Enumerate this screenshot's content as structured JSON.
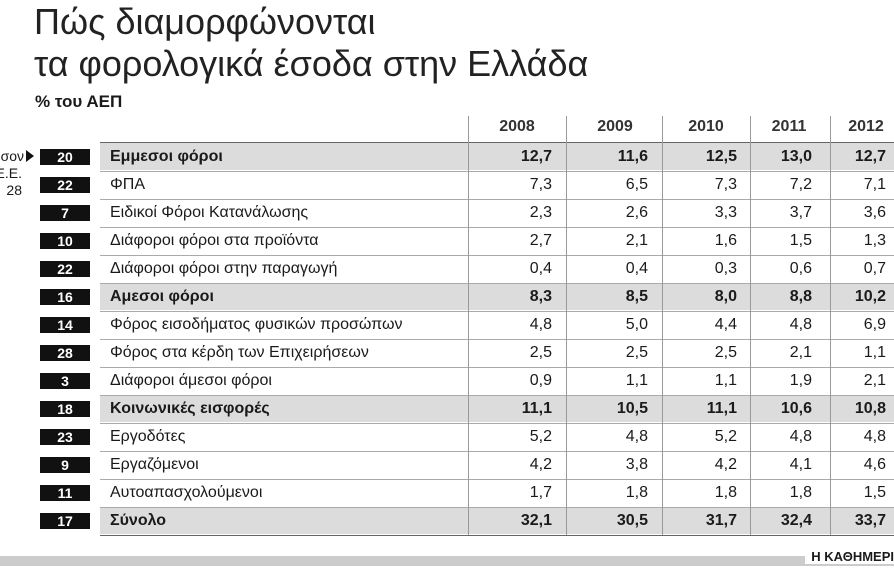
{
  "header": {
    "title_lines": [
      "Πώς διαμορφώνονται",
      "τα φορολογικά έσοδα στην Ελλάδα"
    ],
    "subtitle": "% του ΑΕΠ"
  },
  "side_note": [
    "σον",
    "Ε.Ε.",
    "28"
  ],
  "table": {
    "columns": [
      "2008",
      "2009",
      "2010",
      "2011",
      "2012"
    ],
    "rows": [
      {
        "rank": "20",
        "label": "Εμμεσοι φόροι",
        "values": [
          "12,7",
          "11,6",
          "12,5",
          "13,0",
          "12,7"
        ],
        "emphasis": true
      },
      {
        "rank": "22",
        "label": "ΦΠΑ",
        "values": [
          "7,3",
          "6,5",
          "7,3",
          "7,2",
          "7,1"
        ],
        "emphasis": false
      },
      {
        "rank": "7",
        "label": "Ειδικοί Φόροι Κατανάλωσης",
        "values": [
          "2,3",
          "2,6",
          "3,3",
          "3,7",
          "3,6"
        ],
        "emphasis": false
      },
      {
        "rank": "10",
        "label": "Διάφοροι φόροι στα προϊόντα",
        "values": [
          "2,7",
          "2,1",
          "1,6",
          "1,5",
          "1,3"
        ],
        "emphasis": false
      },
      {
        "rank": "22",
        "label": "Διάφοροι φόροι στην παραγωγή",
        "values": [
          "0,4",
          "0,4",
          "0,3",
          "0,6",
          "0,7"
        ],
        "emphasis": false
      },
      {
        "rank": "16",
        "label": "Αμεσοι φόροι",
        "values": [
          "8,3",
          "8,5",
          "8,0",
          "8,8",
          "10,2"
        ],
        "emphasis": true
      },
      {
        "rank": "14",
        "label": "Φόρος εισοδήματος φυσικών προσώπων",
        "values": [
          "4,8",
          "5,0",
          "4,4",
          "4,8",
          "6,9"
        ],
        "emphasis": false
      },
      {
        "rank": "28",
        "label": "Φόρος στα κέρδη των Επιχειρήσεων",
        "values": [
          "2,5",
          "2,5",
          "2,5",
          "2,1",
          "1,1"
        ],
        "emphasis": false
      },
      {
        "rank": "3",
        "label": "Διάφοροι άμεσοι φόροι",
        "values": [
          "0,9",
          "1,1",
          "1,1",
          "1,9",
          "2,1"
        ],
        "emphasis": false
      },
      {
        "rank": "18",
        "label": "Κοινωνικές εισφορές",
        "values": [
          "11,1",
          "10,5",
          "11,1",
          "10,6",
          "10,8"
        ],
        "emphasis": true
      },
      {
        "rank": "23",
        "label": "Εργοδότες",
        "values": [
          "5,2",
          "4,8",
          "5,2",
          "4,8",
          "4,8"
        ],
        "emphasis": false
      },
      {
        "rank": "9",
        "label": "Εργαζόμενοι",
        "values": [
          "4,2",
          "3,8",
          "4,2",
          "4,1",
          "4,6"
        ],
        "emphasis": false
      },
      {
        "rank": "11",
        "label": "Αυτοαπασχολούμενοι",
        "values": [
          "1,7",
          "1,8",
          "1,8",
          "1,8",
          "1,5"
        ],
        "emphasis": false
      },
      {
        "rank": "17",
        "label": "Σύνολο",
        "values": [
          "32,1",
          "30,5",
          "31,7",
          "32,4",
          "33,7"
        ],
        "emphasis": true
      }
    ]
  },
  "footer": {
    "source": "Η ΚΑΘΗΜΕΡΙ"
  }
}
